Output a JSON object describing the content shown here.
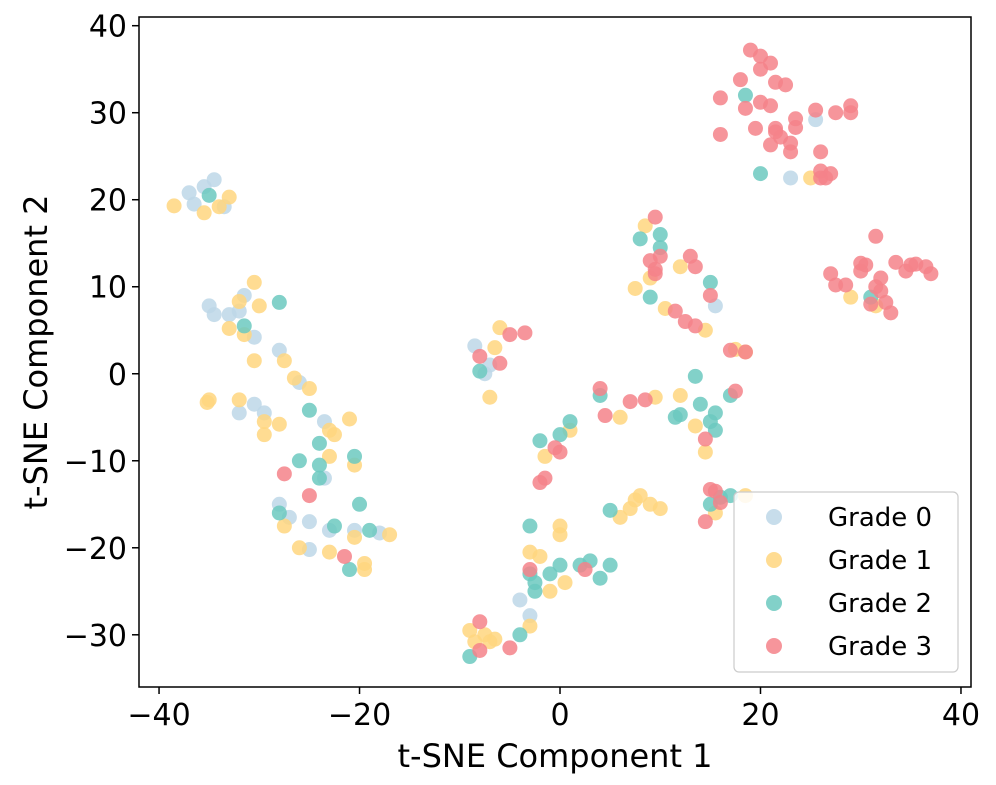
{
  "chart_data": {
    "type": "scatter",
    "title": "",
    "xlabel": "t-SNE Component 1",
    "ylabel": "t-SNE Component 2",
    "xlim": [
      -42,
      41
    ],
    "ylim": [
      -36,
      41
    ],
    "xticks": [
      -40,
      -20,
      0,
      20,
      40
    ],
    "yticks": [
      -30,
      -20,
      -10,
      0,
      10,
      20,
      30,
      40
    ],
    "grid": false,
    "legend_position": "lower-right",
    "series": [
      {
        "name": "Grade 0",
        "color": "#bdd7e7",
        "points": [
          [
            -37,
            20.8
          ],
          [
            -36.5,
            19.5
          ],
          [
            -35.5,
            21.5
          ],
          [
            -34.5,
            22.3
          ],
          [
            -33.5,
            19.2
          ],
          [
            -35,
            7.8
          ],
          [
            -34.5,
            6.8
          ],
          [
            -33,
            6.8
          ],
          [
            -32,
            7.2
          ],
          [
            -31.5,
            9
          ],
          [
            -30.5,
            4.2
          ],
          [
            -28,
            2.7
          ],
          [
            -32,
            -4.5
          ],
          [
            -30.5,
            -3.5
          ],
          [
            -29.5,
            -4.5
          ],
          [
            -26,
            -1
          ],
          [
            -23.5,
            -5.5
          ],
          [
            -28,
            -15
          ],
          [
            -27,
            -16.5
          ],
          [
            -25,
            -17
          ],
          [
            -25,
            -20.2
          ],
          [
            -23,
            -18
          ],
          [
            -23.5,
            -12
          ],
          [
            -20.5,
            -18
          ],
          [
            -18,
            -18.3
          ],
          [
            -8.5,
            3.2
          ],
          [
            -7.5,
            0
          ],
          [
            -7,
            1
          ],
          [
            -4,
            -26
          ],
          [
            -3,
            -27.8
          ],
          [
            15.5,
            7.8
          ],
          [
            23,
            22.5
          ],
          [
            25.5,
            29.2
          ]
        ]
      },
      {
        "name": "Grade 1",
        "color": "#ffd67f",
        "points": [
          [
            -38.5,
            19.3
          ],
          [
            -35.5,
            18.5
          ],
          [
            -34,
            19.2
          ],
          [
            -33,
            20.3
          ],
          [
            -32,
            8.3
          ],
          [
            -31.5,
            4.5
          ],
          [
            -33,
            5.2
          ],
          [
            -30.5,
            10.5
          ],
          [
            -30,
            7.8
          ],
          [
            -30.5,
            1.5
          ],
          [
            -27.5,
            1.5
          ],
          [
            -35,
            -3
          ],
          [
            -35.2,
            -3.3
          ],
          [
            -32,
            -3
          ],
          [
            -29.5,
            -5.5
          ],
          [
            -29.5,
            -7
          ],
          [
            -28,
            -5.8
          ],
          [
            -26.5,
            -0.5
          ],
          [
            -25,
            -1.7
          ],
          [
            -23,
            -6.5
          ],
          [
            -22.5,
            -7
          ],
          [
            -21,
            -5.2
          ],
          [
            -23,
            -9.5
          ],
          [
            -20.5,
            -10.5
          ],
          [
            -27.5,
            -17.5
          ],
          [
            -26,
            -20
          ],
          [
            -23,
            -20.5
          ],
          [
            -20.5,
            -18.8
          ],
          [
            -19.5,
            -21.8
          ],
          [
            -19.5,
            -22.5
          ],
          [
            -17,
            -18.5
          ],
          [
            -7,
            -2.7
          ],
          [
            -6,
            5.3
          ],
          [
            -6.5,
            3
          ],
          [
            -9,
            -29.5
          ],
          [
            -8.5,
            -30.8
          ],
          [
            -7.5,
            -30
          ],
          [
            -7,
            -30.8
          ],
          [
            -6.5,
            -30.5
          ],
          [
            -3,
            -20.5
          ],
          [
            -3,
            -29
          ],
          [
            -2,
            -21
          ],
          [
            -1,
            -25
          ],
          [
            0,
            -17.5
          ],
          [
            0,
            -18.5
          ],
          [
            0.5,
            -24
          ],
          [
            1,
            -6.5
          ],
          [
            -1.5,
            -9.5
          ],
          [
            6,
            -5
          ],
          [
            6,
            -16.5
          ],
          [
            7,
            -15.5
          ],
          [
            7.5,
            -14.5
          ],
          [
            8,
            -14
          ],
          [
            9,
            -15
          ],
          [
            10,
            -15.5
          ],
          [
            7.5,
            9.8
          ],
          [
            8.5,
            17
          ],
          [
            9,
            11
          ],
          [
            9.5,
            -2.7
          ],
          [
            10.5,
            7.5
          ],
          [
            12,
            -2.5
          ],
          [
            12,
            12.3
          ],
          [
            13.5,
            -6
          ],
          [
            14.5,
            -9
          ],
          [
            14.5,
            5
          ],
          [
            15.5,
            -16
          ],
          [
            17.5,
            2.8
          ],
          [
            18.5,
            2.5
          ],
          [
            18.5,
            -14
          ],
          [
            25,
            22.5
          ],
          [
            29,
            8.8
          ],
          [
            31.5,
            7.8
          ]
        ]
      },
      {
        "name": "Grade 2",
        "color": "#6cc9bf",
        "points": [
          [
            -35,
            20.5
          ],
          [
            -31.5,
            5.5
          ],
          [
            -28,
            8.2
          ],
          [
            -25,
            -4.2
          ],
          [
            -24,
            -8
          ],
          [
            -24,
            -10.5
          ],
          [
            -26,
            -10
          ],
          [
            -24,
            -12
          ],
          [
            -22.5,
            -17.5
          ],
          [
            -20.5,
            -9.5
          ],
          [
            -20,
            -15
          ],
          [
            -19,
            -18
          ],
          [
            -21,
            -22.5
          ],
          [
            -28,
            -16
          ],
          [
            -8,
            0.3
          ],
          [
            -9,
            -32.5
          ],
          [
            -4,
            -30
          ],
          [
            -3,
            -17.5
          ],
          [
            -3,
            -23
          ],
          [
            -2.5,
            -25
          ],
          [
            -2.5,
            -24
          ],
          [
            -1,
            -23
          ],
          [
            -2,
            -7.7
          ],
          [
            0,
            -7
          ],
          [
            1,
            -5.5
          ],
          [
            0,
            -22
          ],
          [
            2,
            -22
          ],
          [
            3,
            -21.5
          ],
          [
            4,
            -23.5
          ],
          [
            5,
            -22
          ],
          [
            4,
            -2.5
          ],
          [
            5,
            -15.7
          ],
          [
            8,
            15.5
          ],
          [
            9,
            8.8
          ],
          [
            10,
            14.5
          ],
          [
            10,
            16
          ],
          [
            11.5,
            -5
          ],
          [
            12,
            -4.7
          ],
          [
            13.5,
            -0.3
          ],
          [
            14,
            -3.5
          ],
          [
            15,
            10.5
          ],
          [
            15,
            -5.5
          ],
          [
            15.5,
            -4.5
          ],
          [
            15,
            -15
          ],
          [
            15.5,
            -6.5
          ],
          [
            16,
            -14.2
          ],
          [
            17,
            -14
          ],
          [
            17,
            -2.5
          ],
          [
            18.5,
            32
          ],
          [
            20,
            23
          ],
          [
            31,
            8.8
          ]
        ]
      },
      {
        "name": "Grade 3",
        "color": "#f5838a",
        "points": [
          [
            -27.5,
            -11.5
          ],
          [
            -25,
            -14
          ],
          [
            -21.5,
            -21
          ],
          [
            -8,
            2
          ],
          [
            -6,
            1.2
          ],
          [
            -5,
            4.5
          ],
          [
            -3.5,
            4.7
          ],
          [
            -8,
            -28.5
          ],
          [
            -8,
            -31.8
          ],
          [
            -5,
            -31.5
          ],
          [
            -3,
            -22.5
          ],
          [
            -2,
            -12.5
          ],
          [
            -1.5,
            -12
          ],
          [
            -0.5,
            -8.5
          ],
          [
            0,
            -9
          ],
          [
            2.5,
            -22.5
          ],
          [
            4,
            -1.7
          ],
          [
            4.5,
            -4.8
          ],
          [
            7,
            -3.2
          ],
          [
            8.5,
            -3
          ],
          [
            9,
            13
          ],
          [
            9.5,
            18
          ],
          [
            9.5,
            12
          ],
          [
            10,
            13.5
          ],
          [
            9.5,
            11.5
          ],
          [
            11.5,
            7.2
          ],
          [
            12.5,
            6
          ],
          [
            13,
            13.5
          ],
          [
            13.5,
            12.3
          ],
          [
            13.5,
            5.5
          ],
          [
            14.5,
            -7.5
          ],
          [
            15,
            9
          ],
          [
            15,
            -13.3
          ],
          [
            15.5,
            -13.5
          ],
          [
            16,
            -14.8
          ],
          [
            14.5,
            -17
          ],
          [
            17.5,
            -2
          ],
          [
            17,
            2.7
          ],
          [
            18.5,
            2.5
          ],
          [
            16,
            27.5
          ],
          [
            16,
            31.7
          ],
          [
            18,
            33.8
          ],
          [
            18.5,
            30.5
          ],
          [
            19,
            37.2
          ],
          [
            19.5,
            28.2
          ],
          [
            20,
            36.5
          ],
          [
            20,
            35
          ],
          [
            21,
            35.7
          ],
          [
            21.5,
            33.5
          ],
          [
            20,
            31.2
          ],
          [
            21,
            30.8
          ],
          [
            21.5,
            27.8
          ],
          [
            21,
            26.3
          ],
          [
            22.5,
            33.2
          ],
          [
            22,
            27.2
          ],
          [
            21.5,
            28.2
          ],
          [
            23,
            26.5
          ],
          [
            23,
            25.5
          ],
          [
            23.5,
            29.3
          ],
          [
            23.5,
            28.3
          ],
          [
            25.5,
            30.3
          ],
          [
            26,
            25.5
          ],
          [
            26,
            23.3
          ],
          [
            27,
            23
          ],
          [
            27.5,
            30
          ],
          [
            29,
            30.8
          ],
          [
            29,
            30
          ],
          [
            26,
            22.5
          ],
          [
            27,
            11.5
          ],
          [
            27.5,
            10.2
          ],
          [
            28.5,
            10.2
          ],
          [
            30,
            12.7
          ],
          [
            30,
            11.8
          ],
          [
            30.5,
            12.5
          ],
          [
            31.5,
            15.8
          ],
          [
            31.5,
            10
          ],
          [
            31,
            8
          ],
          [
            32,
            11
          ],
          [
            32,
            9.5
          ],
          [
            32.5,
            8.2
          ],
          [
            33,
            7
          ],
          [
            33.5,
            12.8
          ],
          [
            34.5,
            11.8
          ],
          [
            35,
            12.5
          ],
          [
            35.5,
            12.6
          ],
          [
            36.5,
            12.3
          ],
          [
            37,
            11.5
          ],
          [
            26.5,
            22.5
          ]
        ]
      }
    ]
  }
}
